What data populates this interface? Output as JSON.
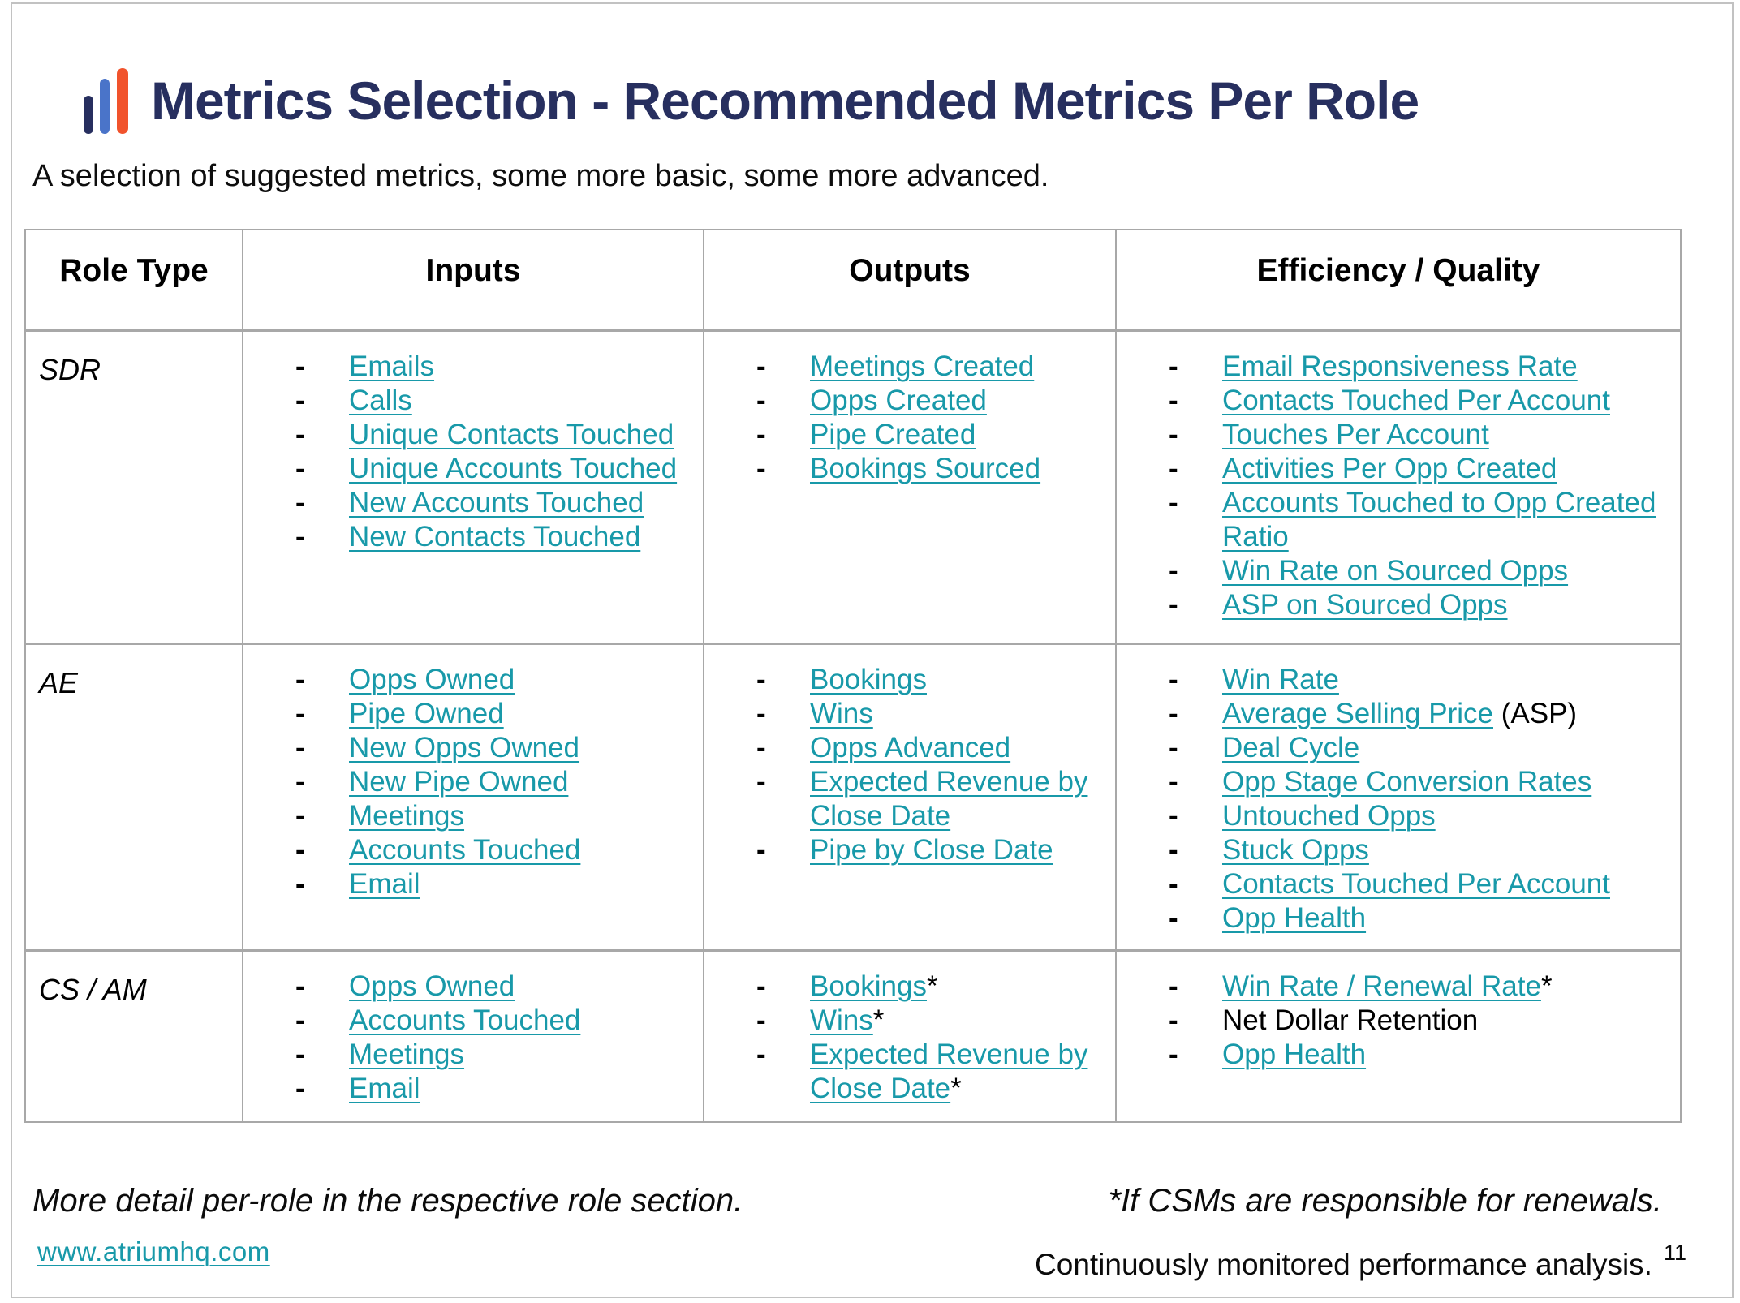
{
  "slide": {
    "title": "Metrics Selection - Recommended Metrics Per Role",
    "subtitle": "A selection of suggested metrics, some more basic, some more advanced."
  },
  "colors": {
    "link_teal": "#1899A9",
    "title_navy": "#272F5F",
    "logo_blue": "#4A74C9",
    "logo_orange": "#F1532C"
  },
  "table": {
    "headers": [
      "Role Type",
      "Inputs",
      "Outputs",
      "Efficiency / Quality"
    ],
    "rows": [
      {
        "role": "SDR",
        "inputs": [
          {
            "label": "Emails",
            "link": true
          },
          {
            "label": "Calls",
            "link": true
          },
          {
            "label": "Unique Contacts Touched",
            "link": true
          },
          {
            "label": "Unique Accounts Touched",
            "link": true
          },
          {
            "label": "New Accounts Touched",
            "link": true
          },
          {
            "label": "New Contacts Touched",
            "link": true
          }
        ],
        "outputs": [
          {
            "label": "Meetings Created",
            "link": true
          },
          {
            "label": "Opps Created",
            "link": true
          },
          {
            "label": "Pipe Created",
            "link": true
          },
          {
            "label": "Bookings Sourced",
            "link": true
          }
        ],
        "efficiency": [
          {
            "label": "Email Responsiveness Rate",
            "link": true
          },
          {
            "label": "Contacts Touched Per Account",
            "link": true
          },
          {
            "label": "Touches Per Account",
            "link": true
          },
          {
            "label": "Activities Per Opp Created",
            "link": true
          },
          {
            "label": "Accounts Touched to Opp Created Ratio",
            "link": true
          },
          {
            "label": "Win Rate on Sourced Opps",
            "link": true
          },
          {
            "label": "ASP on Sourced Opps",
            "link": true
          }
        ]
      },
      {
        "role": "AE",
        "inputs": [
          {
            "label": "Opps Owned",
            "link": true
          },
          {
            "label": "Pipe Owned",
            "link": true
          },
          {
            "label": "New Opps Owned",
            "link": true
          },
          {
            "label": "New Pipe Owned",
            "link": true
          },
          {
            "label": "Meetings",
            "link": true
          },
          {
            "label": "Accounts Touched",
            "link": true
          },
          {
            "label": "Email",
            "link": true
          }
        ],
        "outputs": [
          {
            "label": "Bookings",
            "link": true
          },
          {
            "label": "Wins",
            "link": true
          },
          {
            "label": "Opps Advanced",
            "link": true
          },
          {
            "label": "Expected Revenue by Close Date",
            "link": true
          },
          {
            "label": "Pipe by Close Date",
            "link": true
          }
        ],
        "efficiency": [
          {
            "label": "Win Rate",
            "link": true
          },
          {
            "label": "Average Selling Price",
            "suffix": " (ASP)",
            "link": true
          },
          {
            "label": "Deal Cycle",
            "link": true
          },
          {
            "label": "Opp Stage Conversion Rates",
            "link": true
          },
          {
            "label": "Untouched Opps",
            "link": true
          },
          {
            "label": "Stuck Opps",
            "link": true
          },
          {
            "label": "Contacts Touched Per Account",
            "link": true
          },
          {
            "label": "Opp Health",
            "link": true
          }
        ]
      },
      {
        "role": "CS / AM",
        "inputs": [
          {
            "label": "Opps Owned",
            "link": true
          },
          {
            "label": "Accounts Touched",
            "link": true
          },
          {
            "label": "Meetings",
            "link": true
          },
          {
            "label": "Email",
            "link": true
          }
        ],
        "outputs": [
          {
            "label": "Bookings",
            "suffix": "*",
            "link": true
          },
          {
            "label": "Wins",
            "suffix": "*",
            "link": true
          },
          {
            "label": "Expected Revenue by Close Date",
            "suffix": "*",
            "link": true
          }
        ],
        "efficiency": [
          {
            "label": "Win Rate / Renewal Rate",
            "suffix": "*",
            "link": true
          },
          {
            "label": "Net Dollar Retention",
            "link": false
          },
          {
            "label": "Opp Health",
            "link": true
          }
        ]
      }
    ]
  },
  "footer": {
    "left_note": "More detail per-role in the respective role section.",
    "website": "www.atriumhq.com",
    "right_note": "*If CSMs are responsible for renewals.",
    "right_note2": "Continuously monitored performance analysis.",
    "page_number": "11"
  }
}
